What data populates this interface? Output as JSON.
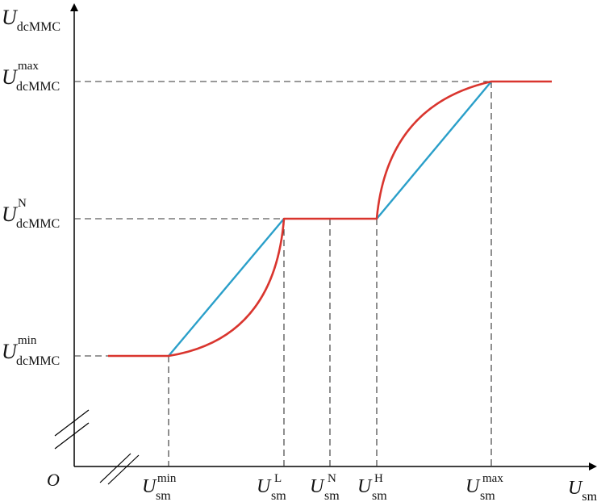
{
  "axes": {
    "origin": "O",
    "y_label": {
      "main": "U",
      "sub": "dcMMC"
    },
    "x_label": {
      "main": "U",
      "sub": "sm"
    }
  },
  "y_ticks": [
    {
      "main": "U",
      "sub": "dcMMC",
      "sup": "max"
    },
    {
      "main": "U",
      "sub": "dcMMC",
      "sup": "N"
    },
    {
      "main": "U",
      "sub": "dcMMC",
      "sup": "min"
    }
  ],
  "x_ticks": [
    {
      "main": "U",
      "sub": "sm",
      "sup": "min"
    },
    {
      "main": "U",
      "sub": "sm",
      "sup": "L"
    },
    {
      "main": "U",
      "sub": "sm",
      "sup": "N"
    },
    {
      "main": "U",
      "sub": "sm",
      "sup": "H"
    },
    {
      "main": "U",
      "sub": "sm",
      "sup": "max"
    }
  ],
  "colors": {
    "axis": "#000000",
    "red_curve": "#d9352e",
    "blue_line": "#2a9fc9",
    "dashed": "#333333"
  }
}
